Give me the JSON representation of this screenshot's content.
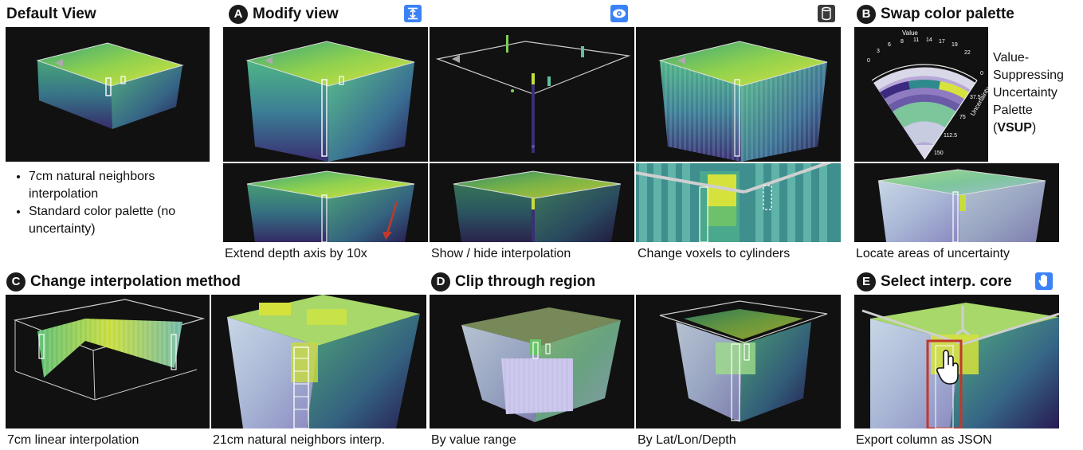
{
  "default_view": {
    "title": "Default View",
    "bullets": [
      "7cm natural neighbors interpolation",
      "Standard color palette (no uncertainty)"
    ]
  },
  "modify_view": {
    "badge": "A",
    "title": "Modify view",
    "icons": [
      "depth-scale-icon",
      "eye-icon",
      "cylinder-icon"
    ],
    "captions": [
      "Extend depth axis by 10x",
      "Show / hide interpolation",
      "Change voxels to cylinders"
    ]
  },
  "swap_palette": {
    "badge": "B",
    "title": "Swap color palette",
    "label_lines": [
      "Value-",
      "Suppressing",
      "Uncertainty",
      "Palette",
      "(",
      "VSUP",
      ")"
    ],
    "caption": "Locate areas of uncertainty",
    "legend": {
      "value_title": "Value",
      "value_ticks": [
        "0",
        "3",
        "6",
        "8",
        "11",
        "14",
        "17",
        "19",
        "22"
      ],
      "uncertainty_title": "Uncertainty",
      "uncertainty_ticks": [
        "0",
        "37.5",
        "75",
        "112.5",
        "150"
      ]
    }
  },
  "interp_method": {
    "badge": "C",
    "title": "Change interpolation method",
    "captions": [
      "7cm linear interpolation",
      "21cm natural neighbors interp."
    ]
  },
  "clip_region": {
    "badge": "D",
    "title": "Clip through region",
    "captions": [
      "By value range",
      "By Lat/Lon/Depth"
    ]
  },
  "select_core": {
    "badge": "E",
    "title": "Select interp. core",
    "icon": "hand-icon",
    "caption": "Export column as JSON"
  },
  "colors": {
    "accent_blue": "#3b82f6",
    "core_outline": "#c0392b",
    "panel_bg": "#111111"
  }
}
